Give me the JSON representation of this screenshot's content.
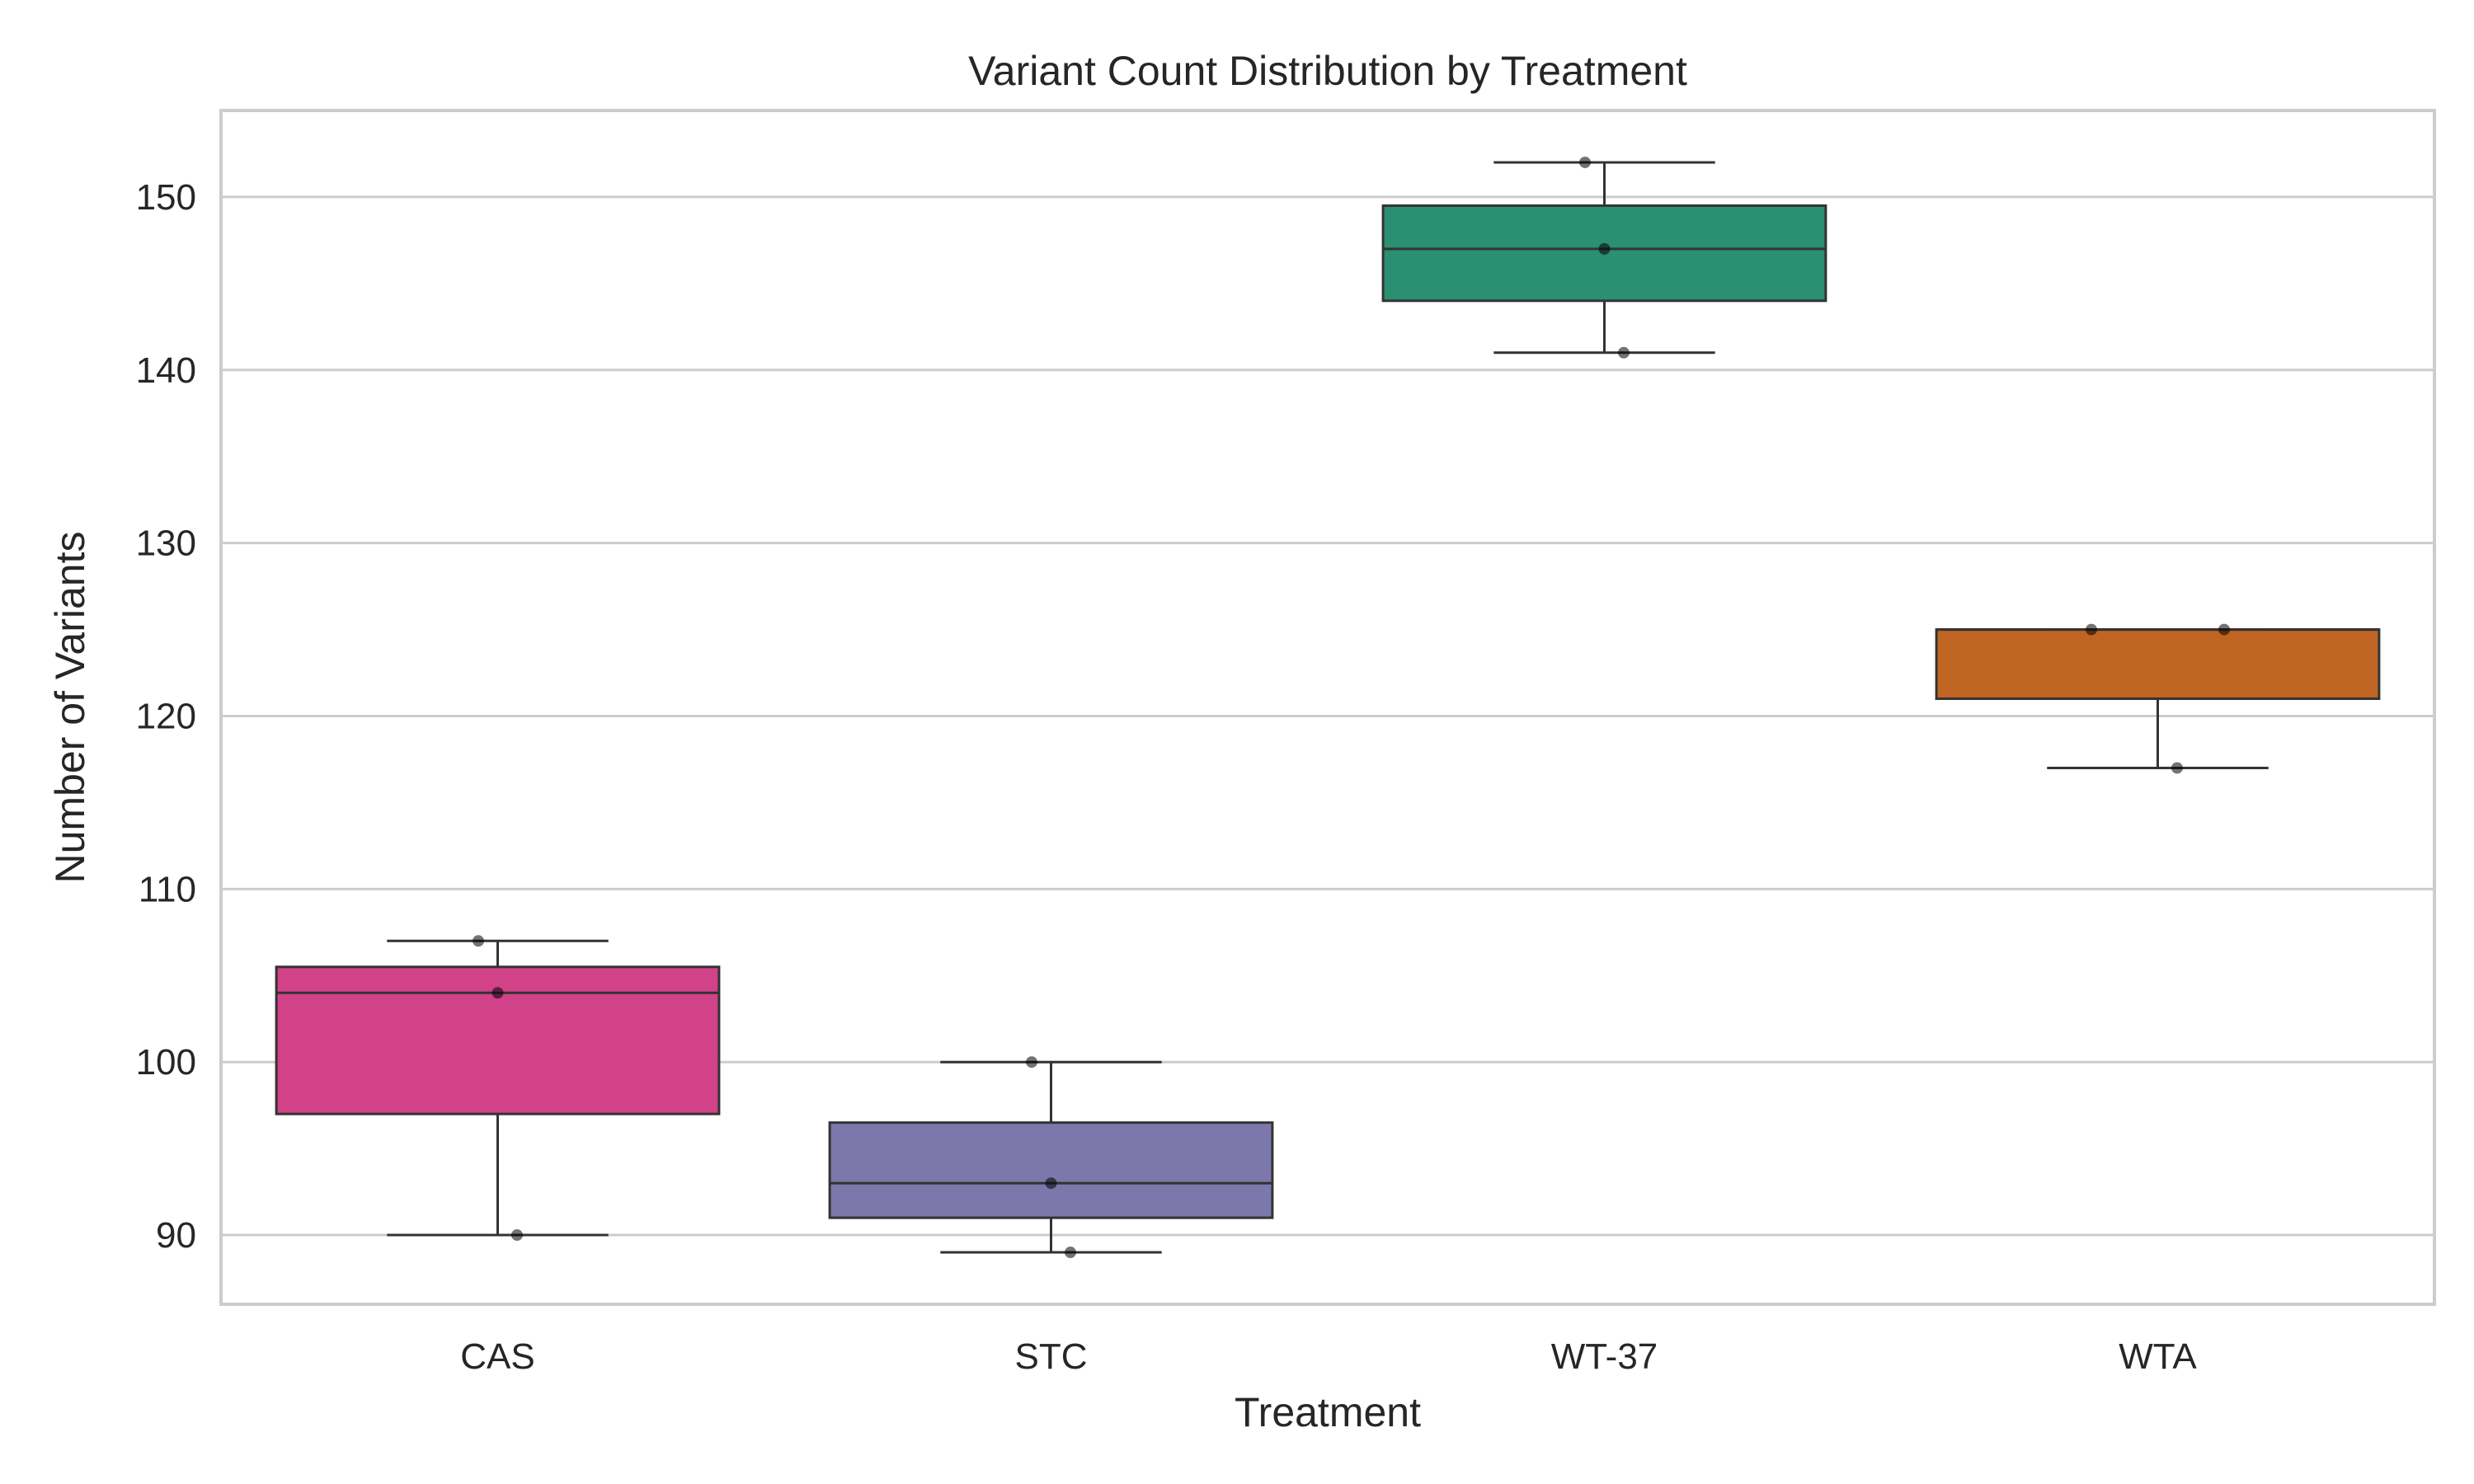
{
  "chart_data": {
    "type": "box",
    "title": "Variant Count Distribution by Treatment",
    "xlabel": "Treatment",
    "ylabel": "Number of Variants",
    "ylim": [
      86,
      155
    ],
    "yticks": [
      90,
      100,
      110,
      120,
      130,
      140,
      150
    ],
    "grid": true,
    "categories": [
      "CAS",
      "STC",
      "WT-37",
      "WTA"
    ],
    "boxes": [
      {
        "name": "CAS",
        "color": "#d14289",
        "whisker_low": 90,
        "q1": 97,
        "median": 104,
        "q3": 105.5,
        "whisker_high": 107,
        "points": [
          107,
          104,
          90
        ]
      },
      {
        "name": "STC",
        "color": "#7c78ab",
        "whisker_low": 89,
        "q1": 91,
        "median": 93,
        "q3": 96.5,
        "whisker_high": 100,
        "points": [
          100,
          93,
          89
        ]
      },
      {
        "name": "WT-37",
        "color": "#2b8f71",
        "whisker_low": 141,
        "q1": 144,
        "median": 147,
        "q3": 149.5,
        "whisker_high": 152,
        "points": [
          152,
          147,
          141
        ]
      },
      {
        "name": "WTA",
        "color": "#c06423",
        "whisker_low": 117,
        "q1": 121,
        "median": 125,
        "q3": 125,
        "whisker_high": 125,
        "points": [
          125,
          125,
          117
        ]
      }
    ]
  }
}
